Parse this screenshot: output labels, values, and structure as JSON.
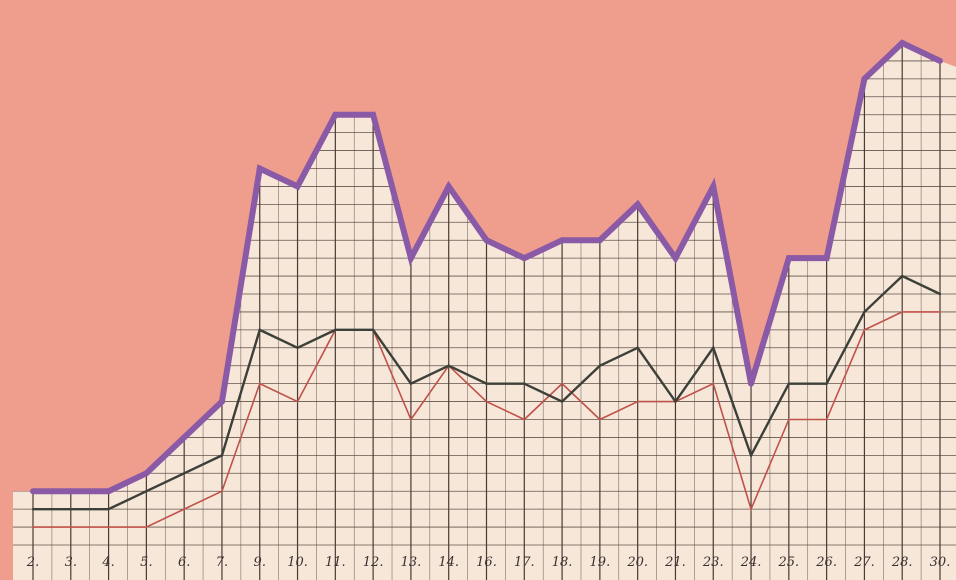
{
  "chart_data": {
    "type": "line",
    "title": "",
    "xlabel": "",
    "ylabel": "",
    "categories": [
      "2.",
      "3.",
      "4.",
      "5.",
      "6.",
      "7.",
      "9.",
      "10.",
      "11.",
      "12.",
      "13.",
      "14.",
      "16.",
      "17.",
      "18.",
      "19.",
      "20.",
      "21.",
      "23.",
      "24.",
      "25.",
      "26.",
      "27.",
      "28.",
      "30."
    ],
    "ylim": [
      0,
      28
    ],
    "grid": true,
    "legend": "none",
    "series": [
      {
        "color": "#8b5aa6",
        "values": [
          3,
          3,
          3,
          4,
          6,
          8,
          21,
          20,
          24,
          24,
          16,
          20,
          17,
          16,
          17,
          17,
          19,
          16,
          20,
          9,
          16,
          16,
          26,
          28,
          27
        ]
      },
      {
        "color": "#3c4038",
        "values": [
          2,
          2,
          2,
          3,
          4,
          5,
          12,
          11,
          12,
          12,
          9,
          10,
          9,
          9,
          8,
          10,
          11,
          8,
          11,
          5,
          9,
          9,
          13,
          15,
          14
        ]
      },
      {
        "color": "#c0524a",
        "values": [
          1,
          1,
          1,
          1,
          2,
          3,
          9,
          8,
          12,
          12,
          7,
          10,
          8,
          7,
          9,
          7,
          8,
          8,
          9,
          2,
          7,
          7,
          12,
          13,
          13
        ]
      }
    ],
    "colors": {
      "background": "#ef9e8e",
      "paper": "#f6e7d9",
      "grid": "#4a3a34"
    }
  }
}
